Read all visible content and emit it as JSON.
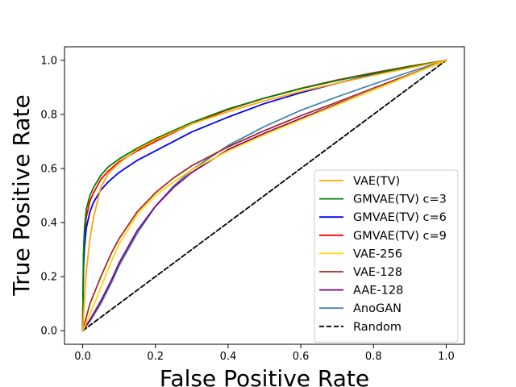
{
  "chart_data": {
    "type": "line",
    "title": "",
    "xlabel": "False Positive Rate",
    "ylabel": "True Positive Rate",
    "xlim": [
      -0.05,
      1.05
    ],
    "ylim": [
      -0.05,
      1.05
    ],
    "xticks": [
      0.0,
      0.2,
      0.4,
      0.6,
      0.8,
      1.0
    ],
    "yticks": [
      0.0,
      0.2,
      0.4,
      0.6,
      0.8,
      1.0
    ],
    "xtick_labels": [
      "0.0",
      "0.2",
      "0.4",
      "0.6",
      "0.8",
      "1.0"
    ],
    "ytick_labels": [
      "0.0",
      "0.2",
      "0.4",
      "0.6",
      "0.8",
      "1.0"
    ],
    "grid": false,
    "legend_position": "lower-right",
    "series": [
      {
        "name": "VAE(TV)",
        "color": "#ffa500",
        "dashed": false,
        "x": [
          0,
          0.005,
          0.01,
          0.02,
          0.03,
          0.05,
          0.07,
          0.1,
          0.15,
          0.2,
          0.3,
          0.4,
          0.5,
          0.6,
          0.7,
          0.8,
          0.9,
          1.0
        ],
        "y": [
          0,
          0.12,
          0.22,
          0.34,
          0.42,
          0.53,
          0.58,
          0.62,
          0.67,
          0.705,
          0.765,
          0.81,
          0.85,
          0.885,
          0.915,
          0.945,
          0.972,
          1.0
        ]
      },
      {
        "name": "GMVAE(TV) c=3",
        "color": "#008000",
        "dashed": false,
        "x": [
          0,
          0.002,
          0.005,
          0.01,
          0.02,
          0.03,
          0.05,
          0.07,
          0.1,
          0.15,
          0.2,
          0.3,
          0.4,
          0.5,
          0.6,
          0.7,
          0.8,
          0.9,
          1.0
        ],
        "y": [
          0,
          0.28,
          0.38,
          0.45,
          0.5,
          0.53,
          0.575,
          0.605,
          0.635,
          0.675,
          0.71,
          0.77,
          0.82,
          0.86,
          0.895,
          0.925,
          0.952,
          0.977,
          1.0
        ]
      },
      {
        "name": "GMVAE(TV) c=6",
        "color": "#0000ff",
        "dashed": false,
        "x": [
          0,
          0.002,
          0.005,
          0.01,
          0.02,
          0.03,
          0.05,
          0.07,
          0.1,
          0.15,
          0.2,
          0.3,
          0.4,
          0.5,
          0.6,
          0.7,
          0.8,
          0.9,
          1.0
        ],
        "y": [
          0,
          0.22,
          0.31,
          0.38,
          0.44,
          0.475,
          0.52,
          0.55,
          0.585,
          0.63,
          0.665,
          0.735,
          0.79,
          0.84,
          0.88,
          0.915,
          0.948,
          0.975,
          1.0
        ]
      },
      {
        "name": "GMVAE(TV) c=9",
        "color": "#ff0000",
        "dashed": false,
        "x": [
          0,
          0.002,
          0.005,
          0.01,
          0.02,
          0.03,
          0.05,
          0.07,
          0.1,
          0.15,
          0.2,
          0.3,
          0.4,
          0.5,
          0.6,
          0.7,
          0.8,
          0.9,
          1.0
        ],
        "y": [
          0,
          0.25,
          0.35,
          0.42,
          0.48,
          0.51,
          0.56,
          0.59,
          0.625,
          0.665,
          0.7,
          0.765,
          0.818,
          0.86,
          0.896,
          0.927,
          0.954,
          0.978,
          1.0
        ]
      },
      {
        "name": "VAE-256",
        "color": "#ffd700",
        "dashed": false,
        "x": [
          0,
          0.02,
          0.05,
          0.08,
          0.1,
          0.15,
          0.2,
          0.25,
          0.3,
          0.4,
          0.5,
          0.6,
          0.7,
          0.8,
          0.9,
          1.0
        ],
        "y": [
          0,
          0.06,
          0.16,
          0.26,
          0.32,
          0.43,
          0.5,
          0.55,
          0.595,
          0.665,
          0.725,
          0.78,
          0.835,
          0.89,
          0.945,
          1.0
        ]
      },
      {
        "name": "VAE-128",
        "color": "#a52a2a",
        "dashed": false,
        "x": [
          0,
          0.01,
          0.02,
          0.05,
          0.08,
          0.1,
          0.15,
          0.2,
          0.25,
          0.3,
          0.4,
          0.5,
          0.6,
          0.7,
          0.8,
          0.9,
          1.0
        ],
        "y": [
          0,
          0.05,
          0.1,
          0.2,
          0.29,
          0.34,
          0.44,
          0.51,
          0.565,
          0.61,
          0.68,
          0.74,
          0.795,
          0.845,
          0.897,
          0.948,
          1.0
        ]
      },
      {
        "name": "AAE-128",
        "color": "#800080",
        "dashed": false,
        "x": [
          0,
          0.02,
          0.05,
          0.08,
          0.1,
          0.15,
          0.2,
          0.25,
          0.3,
          0.4,
          0.5,
          0.6,
          0.7,
          0.8,
          0.9,
          1.0
        ],
        "y": [
          0,
          0.04,
          0.11,
          0.19,
          0.25,
          0.37,
          0.46,
          0.53,
          0.585,
          0.67,
          0.73,
          0.785,
          0.838,
          0.89,
          0.945,
          1.0
        ]
      },
      {
        "name": "AnoGAN",
        "color": "#4682b4",
        "dashed": false,
        "x": [
          0,
          0.02,
          0.05,
          0.08,
          0.1,
          0.15,
          0.2,
          0.25,
          0.3,
          0.4,
          0.5,
          0.6,
          0.7,
          0.8,
          0.9,
          1.0
        ],
        "y": [
          0,
          0.035,
          0.1,
          0.18,
          0.24,
          0.36,
          0.46,
          0.535,
          0.595,
          0.685,
          0.755,
          0.815,
          0.865,
          0.912,
          0.957,
          1.0
        ]
      },
      {
        "name": "Random",
        "color": "#000000",
        "dashed": true,
        "x": [
          0,
          1.0
        ],
        "y": [
          0,
          1.0
        ]
      }
    ]
  }
}
